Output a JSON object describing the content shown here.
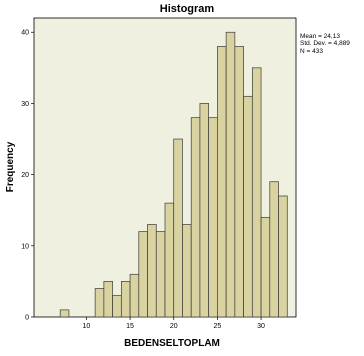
{
  "chart_data": {
    "type": "bar",
    "title": "Histogram",
    "xlabel": "BEDENSELTOPLAM",
    "ylabel": "Frequency",
    "bin_edges": [
      7,
      8,
      9,
      10,
      11,
      12,
      13,
      14,
      15,
      16,
      17,
      18,
      19,
      20,
      21,
      22,
      23,
      24,
      25,
      26,
      27,
      28,
      29,
      30,
      31,
      32,
      33
    ],
    "values": [
      1,
      0,
      0,
      0,
      4,
      5,
      3,
      5,
      6,
      12,
      13,
      12,
      16,
      25,
      13,
      28,
      30,
      28,
      38,
      40,
      38,
      31,
      35,
      14,
      19,
      17
    ],
    "xticks": [
      "10",
      "15",
      "20",
      "25",
      "30"
    ],
    "yticks": [
      "0",
      "10",
      "20",
      "30",
      "40"
    ],
    "xlim": [
      4,
      34
    ],
    "ylim": [
      0,
      42
    ],
    "grid": false,
    "legend": "none",
    "stats": {
      "mean": "Mean = 24,13",
      "std": "Std. Dev. = 4,889",
      "n": "N = 433"
    }
  },
  "colors": {
    "plot_background": "#f0f0e0",
    "bar_fill": "#d8d3a0",
    "bar_stroke": "#3a3a3a",
    "axis": "#000000",
    "background": "#ffffff"
  }
}
